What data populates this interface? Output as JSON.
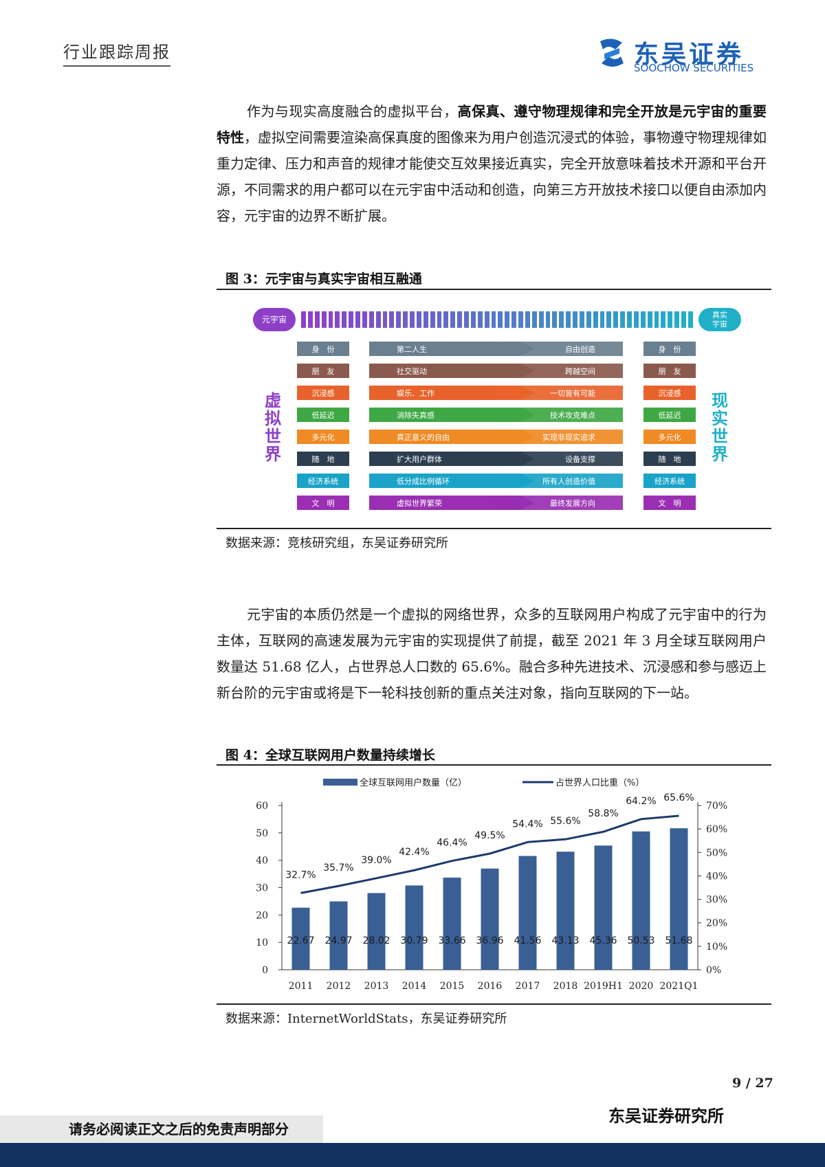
{
  "header": {
    "report_type": "行业跟踪周报",
    "logo_cn": "东吴证券",
    "logo_en": "SOOCHOW SECURITIES",
    "logo_mark": "SCS"
  },
  "para1": {
    "lines": [
      "作为与现实高度融合的虚拟平台，",
      "高保真、遵守物理规律和完全开放是元宇宙的重要特性",
      "，虚拟空间需要渲染高保真度的图像来为用户创造沉浸式的体验，事物遵守物理规律如重力定律、压力和声音的规律才能使交互效果接近真实，完全开放意味着技术开源和平台开源，不同需求的用户都可以在元宇宙中活动和创造，向第三方开放技术接口以便自由添加内容，元宇宙的边界不断扩展。"
    ]
  },
  "figure3": {
    "title": "图 3：元宇宙与真实宇宙相互融通",
    "left_pill": "元宇宙",
    "right_pill": "真实宇宙",
    "left_vertical": "虚拟世界",
    "right_vertical": "现实世界",
    "rows": [
      {
        "left": "身　份",
        "mid_left": "第二人生",
        "mid_right": "自由创造",
        "right": "身　份",
        "color": "#6a7f90"
      },
      {
        "left": "朋　友",
        "mid_left": "社交驱动",
        "mid_right": "跨越空间",
        "right": "朋　友",
        "color": "#8b5a4e"
      },
      {
        "left": "沉浸感",
        "mid_left": "娱乐、工作",
        "mid_right": "一切皆有可能",
        "right": "沉浸感",
        "color": "#e8632b"
      },
      {
        "left": "低延迟",
        "mid_left": "消除失真感",
        "mid_right": "技术攻克难点",
        "right": "低延迟",
        "color": "#3ea844"
      },
      {
        "left": "多元化",
        "mid_left": "真正意义的自由",
        "mid_right": "实现非现实追求",
        "right": "多元化",
        "color": "#f08a24"
      },
      {
        "left": "随　地",
        "mid_left": "扩大用户群体",
        "mid_right": "设备支撑",
        "right": "随　地",
        "color": "#2d3e50"
      },
      {
        "left": "经济系统",
        "mid_left": "低分成比例循环",
        "mid_right": "所有人创造价值",
        "right": "经济系统",
        "color": "#1aa3c8"
      },
      {
        "left": "文　明",
        "mid_left": "虚拟世界繁荣",
        "mid_right": "最终发展方向",
        "right": "文　明",
        "color": "#9a2fb3"
      }
    ],
    "source": "数据来源：竞核研究组，东吴证券研究所"
  },
  "para2": {
    "text": "元宇宙的本质仍然是一个虚拟的网络世界，众多的互联网用户构成了元宇宙中的行为主体，互联网的高速发展为元宇宙的实现提供了前提，截至 2021 年 3 月全球互联网用户数量达 51.68 亿人，占世界总人口数的 65.6%。融合多种先进技术、沉浸感和参与感迈上新台阶的元宇宙或将是下一轮科技创新的重点关注对象，指向互联网的下一站。"
  },
  "figure4": {
    "title": "图 4：全球互联网用户数量持续增长",
    "source": "数据来源：InternetWorldStats，东吴证券研究所"
  },
  "chart_data": {
    "type": "bar",
    "categories": [
      "2011",
      "2012",
      "2013",
      "2014",
      "2015",
      "2016",
      "2017",
      "2018",
      "2019H1",
      "2020",
      "2021Q1"
    ],
    "series": [
      {
        "name": "全球互联网用户数量（亿）",
        "type": "bar",
        "axis": "left",
        "values": [
          22.67,
          24.97,
          28.02,
          30.79,
          33.66,
          36.96,
          41.56,
          43.13,
          45.36,
          50.53,
          51.68
        ],
        "labels": [
          "22.67",
          "24.97",
          "28.02",
          "30.79",
          "33.66",
          "36.96",
          "41.56",
          "43.13",
          "45.36",
          "50.53",
          "51.68"
        ]
      },
      {
        "name": "占世界人口比重（%）",
        "type": "line",
        "axis": "right",
        "values": [
          32.7,
          35.7,
          39.0,
          42.4,
          46.4,
          49.5,
          54.4,
          55.6,
          58.8,
          64.2,
          65.6
        ],
        "labels": [
          "32.7%",
          "35.7%",
          "39.0%",
          "42.4%",
          "46.4%",
          "49.5%",
          "54.4%",
          "55.6%",
          "58.8%",
          "64.2%",
          "65.6%"
        ]
      }
    ],
    "ylim_left": [
      0,
      60
    ],
    "yticks_left": [
      "0",
      "10",
      "20",
      "30",
      "40",
      "50",
      "60"
    ],
    "ylim_right": [
      0,
      70
    ],
    "yticks_right": [
      "0%",
      "10%",
      "20%",
      "30%",
      "40%",
      "50%",
      "60%",
      "70%"
    ],
    "legend_position": "top",
    "grid": false,
    "bar_color": "#3a5f95",
    "line_color": "#1c3a6b"
  },
  "footer": {
    "page": "9 / 27",
    "org": "东吴证券研究所",
    "disclaimer": "请务必阅读正文之后的免责声明部分"
  }
}
